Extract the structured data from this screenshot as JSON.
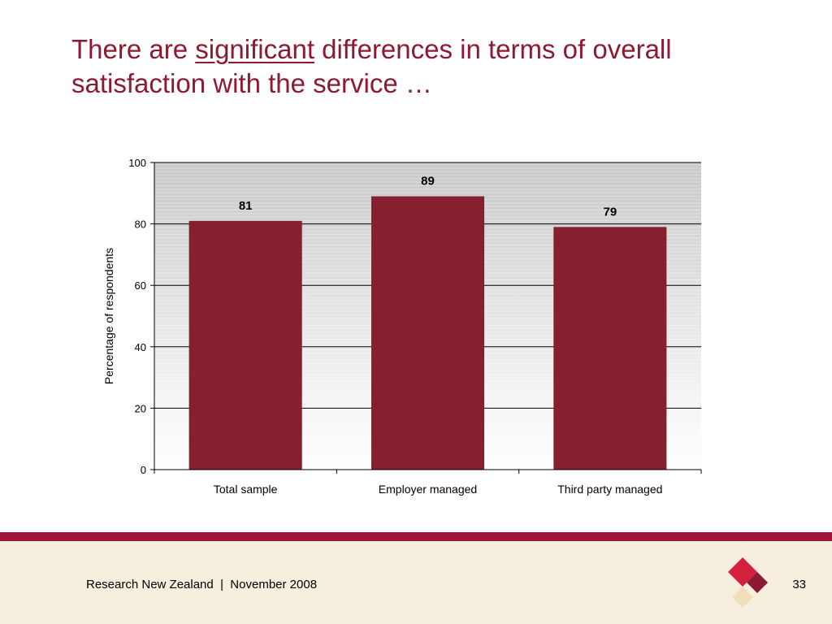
{
  "slide": {
    "title_before": "There are ",
    "title_emphasis": "significant",
    "title_after": " differences in terms of overall satisfaction with the service …"
  },
  "chart_data": {
    "type": "bar",
    "categories": [
      "Total sample",
      "Employer managed",
      "Third party managed"
    ],
    "values": [
      81,
      89,
      79
    ],
    "data_labels": [
      "81",
      "89",
      "79"
    ],
    "ylabel": "Percentage of respondents",
    "xlabel": "",
    "ylim": [
      0,
      100
    ],
    "yticks": [
      0,
      20,
      40,
      60,
      80,
      100
    ],
    "grid": true,
    "legend": "none",
    "bar_color": "#86202f"
  },
  "footer": {
    "text": "Research New Zealand  |  November 2008",
    "page_number": "33"
  },
  "colors": {
    "accent": "#8b1a32",
    "footer_bar": "#a01537",
    "footer_background": "#f7efdd",
    "logo_primary": "#d51f3f",
    "logo_secondary": "#8b1a32",
    "logo_tertiary": "#eedfb8"
  }
}
